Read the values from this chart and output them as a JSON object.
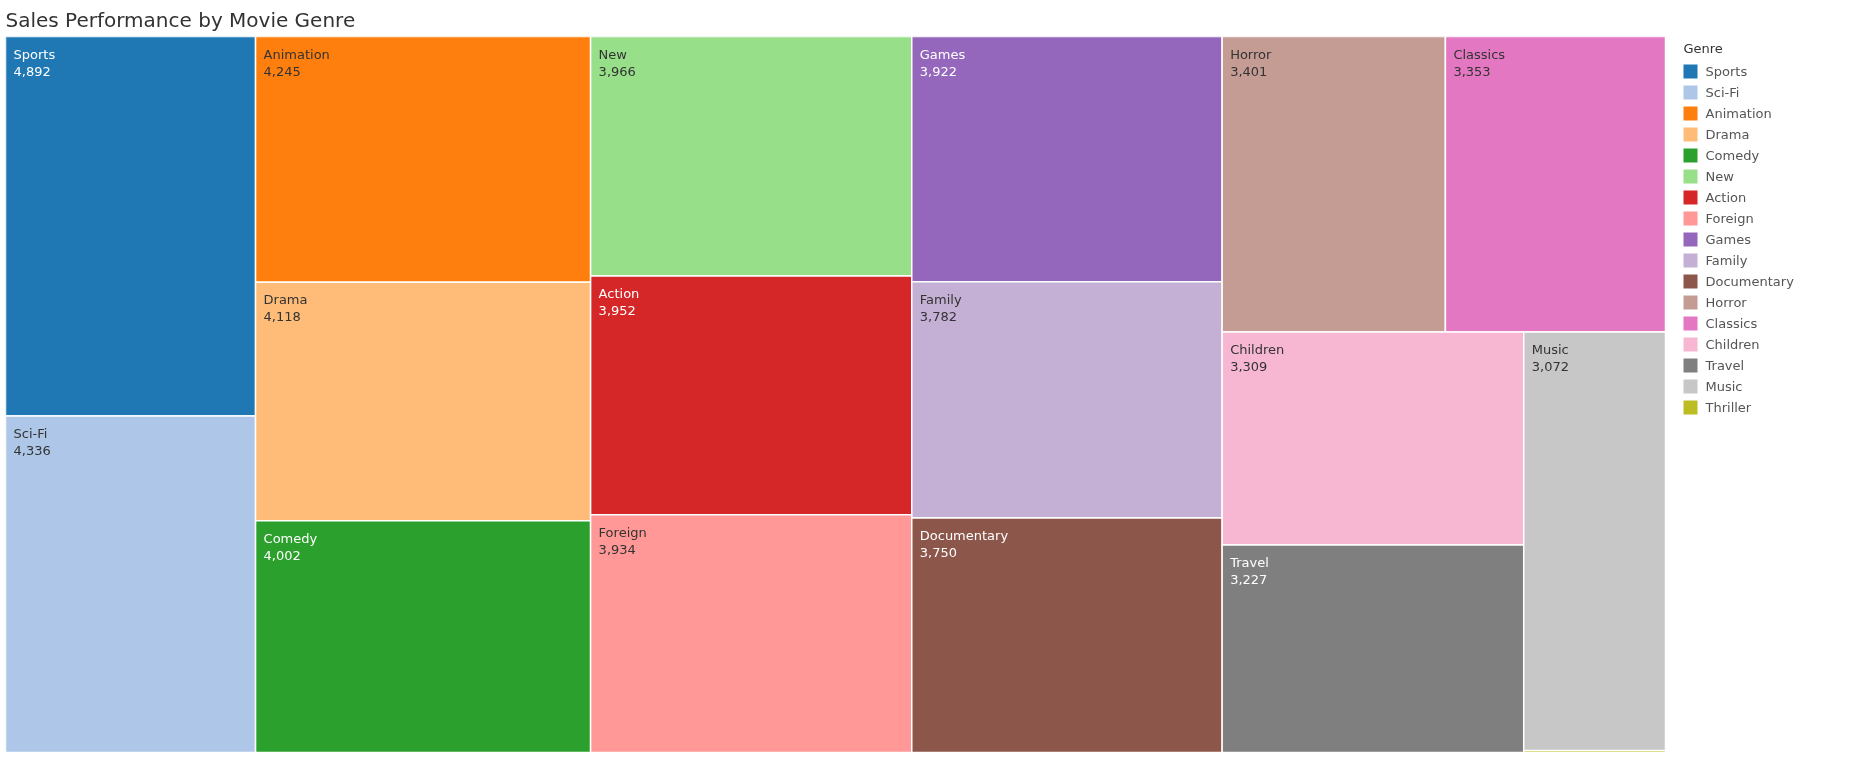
{
  "chart_data": {
    "type": "other",
    "title": "Sales Performance by Movie Genre",
    "legend_title": "Genre",
    "categories": [
      "Sports",
      "Sci-Fi",
      "Animation",
      "Drama",
      "Comedy",
      "New",
      "Action",
      "Foreign",
      "Games",
      "Family",
      "Documentary",
      "Horror",
      "Classics",
      "Children",
      "Travel",
      "Music",
      "Thriller"
    ],
    "values": [
      4892,
      4336,
      4245,
      4118,
      4002,
      3966,
      3952,
      3934,
      3922,
      3782,
      3750,
      3401,
      3353,
      3309,
      3227,
      3072,
      null
    ],
    "value_labels": [
      "4,892",
      "4,336",
      "4,245",
      "4,118",
      "4,002",
      "3,966",
      "3,952",
      "3,934",
      "3,922",
      "3,782",
      "3,750",
      "3,401",
      "3,353",
      "3,309",
      "3,227",
      "3,072",
      null
    ],
    "colors": [
      "#1f77b4",
      "#aec7e8",
      "#ff7f0e",
      "#ffbb78",
      "#2ca02c",
      "#98df8a",
      "#d62728",
      "#ff9896",
      "#9467bd",
      "#c5b0d5",
      "#8c564b",
      "#c49c94",
      "#e377c2",
      "#f7b6d2",
      "#7f7f7f",
      "#c7c7c7",
      "#bcbd22"
    ]
  }
}
